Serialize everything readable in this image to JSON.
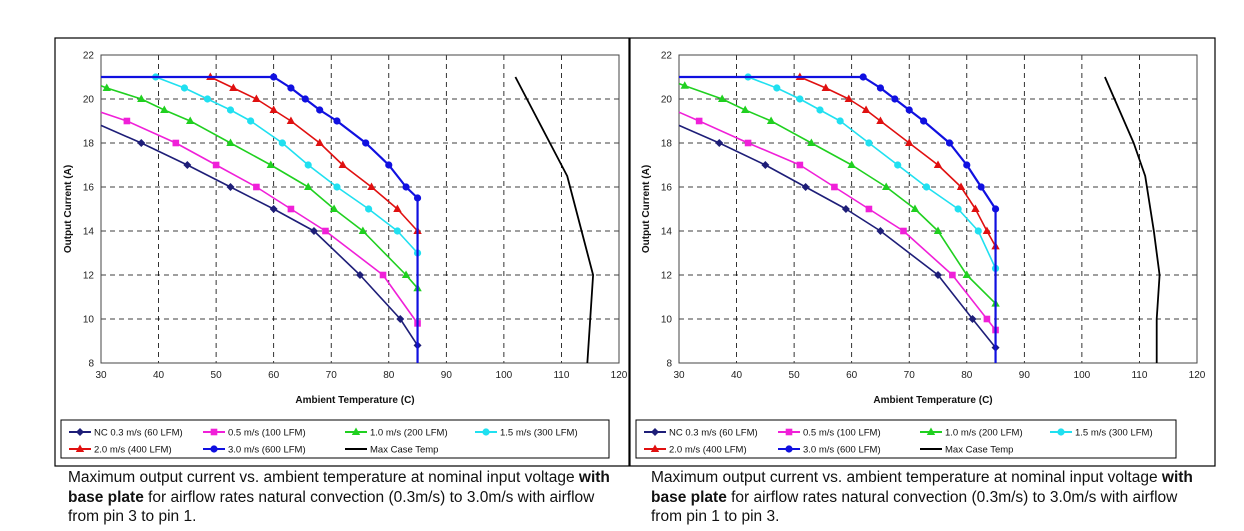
{
  "colors": {
    "nc": "#1e1e78",
    "s05": "#f020d8",
    "s10": "#20d020",
    "s15": "#20e0f0",
    "s20": "#e01010",
    "s30": "#1010e0",
    "max": "#000000"
  },
  "chart_data": [
    {
      "type": "line",
      "xlabel": "Ambient Temperature (C)",
      "ylabel": "Output Current (A)",
      "xlim": [
        30,
        120
      ],
      "ylim": [
        8,
        22
      ],
      "x_ticks": [
        "30",
        "40",
        "50",
        "60",
        "70",
        "80",
        "90",
        "100",
        "110",
        "120"
      ],
      "y_ticks": [
        "8",
        "10",
        "12",
        "14",
        "16",
        "18",
        "20",
        "22"
      ],
      "grid": "dashed",
      "legend_position": "bottom",
      "series": [
        {
          "name": "NC 0.3 m/s (60 LFM)",
          "color_key": "nc",
          "marker": "diamond",
          "points": [
            [
              30,
              18.8
            ],
            [
              37,
              18
            ],
            [
              45,
              17
            ],
            [
              52.5,
              16
            ],
            [
              60,
              15
            ],
            [
              67,
              14
            ],
            [
              75,
              12
            ],
            [
              82,
              10
            ],
            [
              85,
              8.8
            ],
            [
              85,
              8
            ]
          ]
        },
        {
          "name": "0.5 m/s (100 LFM)",
          "color_key": "s05",
          "marker": "square",
          "points": [
            [
              30,
              19.4
            ],
            [
              34.5,
              19
            ],
            [
              43,
              18
            ],
            [
              50,
              17
            ],
            [
              57,
              16
            ],
            [
              63,
              15
            ],
            [
              69,
              14
            ],
            [
              79,
              12
            ],
            [
              85,
              9.8
            ],
            [
              85,
              8
            ]
          ]
        },
        {
          "name": "1.0 m/s (200 LFM)",
          "color_key": "s10",
          "marker": "triangle",
          "points": [
            [
              30,
              20.6
            ],
            [
              31,
              20.5
            ],
            [
              37,
              20
            ],
            [
              41,
              19.5
            ],
            [
              45.5,
              19
            ],
            [
              52.5,
              18
            ],
            [
              59.5,
              17
            ],
            [
              66,
              16
            ],
            [
              70.5,
              15
            ],
            [
              75.5,
              14
            ],
            [
              83,
              12
            ],
            [
              85,
              11.4
            ],
            [
              85,
              8
            ]
          ]
        },
        {
          "name": "1.5 m/s (300 LFM)",
          "color_key": "s15",
          "marker": "circle",
          "points": [
            [
              30,
              21
            ],
            [
              39.5,
              21
            ],
            [
              44.5,
              20.5
            ],
            [
              48.5,
              20
            ],
            [
              52.5,
              19.5
            ],
            [
              56,
              19
            ],
            [
              61.5,
              18
            ],
            [
              66,
              17
            ],
            [
              71,
              16
            ],
            [
              76.5,
              15
            ],
            [
              81.5,
              14
            ],
            [
              85,
              13
            ],
            [
              85,
              8
            ]
          ]
        },
        {
          "name": "2.0 m/s (400 LFM)",
          "color_key": "s20",
          "marker": "triangle",
          "points": [
            [
              30,
              21
            ],
            [
              49,
              21
            ],
            [
              53,
              20.5
            ],
            [
              57,
              20
            ],
            [
              60,
              19.5
            ],
            [
              63,
              19
            ],
            [
              68,
              18
            ],
            [
              72,
              17
            ],
            [
              77,
              16
            ],
            [
              81.5,
              15
            ],
            [
              85,
              14
            ],
            [
              85,
              8
            ]
          ]
        },
        {
          "name": "3.0 m/s (600 LFM)",
          "color_key": "s30",
          "marker": "circle",
          "points": [
            [
              30,
              21
            ],
            [
              60,
              21
            ],
            [
              63,
              20.5
            ],
            [
              65.5,
              20
            ],
            [
              68,
              19.5
            ],
            [
              71,
              19
            ],
            [
              76,
              18
            ],
            [
              80,
              17
            ],
            [
              83,
              16
            ],
            [
              85,
              15.5
            ],
            [
              85,
              8
            ]
          ]
        },
        {
          "name": "Max Case Temp",
          "color_key": "max",
          "marker": "none",
          "points": [
            [
              102,
              21
            ],
            [
              105,
              19.5
            ],
            [
              108,
              18
            ],
            [
              111,
              16.5
            ],
            [
              113.5,
              14
            ],
            [
              115.5,
              12
            ],
            [
              115,
              10
            ],
            [
              114.5,
              8
            ]
          ]
        }
      ]
    },
    {
      "type": "line",
      "xlabel": "Ambient Temperature (C)",
      "ylabel": "Output Current (A)",
      "xlim": [
        30,
        120
      ],
      "ylim": [
        8,
        22
      ],
      "x_ticks": [
        "30",
        "40",
        "50",
        "60",
        "70",
        "80",
        "90",
        "100",
        "110",
        "120"
      ],
      "y_ticks": [
        "8",
        "10",
        "12",
        "14",
        "16",
        "18",
        "20",
        "22"
      ],
      "grid": "dashed",
      "legend_position": "bottom",
      "series": [
        {
          "name": "NC 0.3 m/s (60 LFM)",
          "color_key": "nc",
          "marker": "diamond",
          "points": [
            [
              30,
              18.8
            ],
            [
              37,
              18
            ],
            [
              45,
              17
            ],
            [
              52,
              16
            ],
            [
              59,
              15
            ],
            [
              65,
              14
            ],
            [
              75,
              12
            ],
            [
              81,
              10
            ],
            [
              85,
              8.7
            ],
            [
              85,
              8
            ]
          ]
        },
        {
          "name": "0.5 m/s (100 LFM)",
          "color_key": "s05",
          "marker": "square",
          "points": [
            [
              30,
              19.4
            ],
            [
              33.5,
              19
            ],
            [
              42,
              18
            ],
            [
              51,
              17
            ],
            [
              57,
              16
            ],
            [
              63,
              15
            ],
            [
              69,
              14
            ],
            [
              77.5,
              12
            ],
            [
              83.5,
              10
            ],
            [
              85,
              9.5
            ],
            [
              85,
              8
            ]
          ]
        },
        {
          "name": "1.0 m/s (200 LFM)",
          "color_key": "s10",
          "marker": "triangle",
          "points": [
            [
              30,
              20.7
            ],
            [
              31,
              20.6
            ],
            [
              37.5,
              20
            ],
            [
              41.5,
              19.5
            ],
            [
              46,
              19
            ],
            [
              53,
              18
            ],
            [
              60,
              17
            ],
            [
              66,
              16
            ],
            [
              71,
              15
            ],
            [
              75,
              14
            ],
            [
              80,
              12
            ],
            [
              85,
              10.7
            ],
            [
              85,
              8
            ]
          ]
        },
        {
          "name": "1.5 m/s (300 LFM)",
          "color_key": "s15",
          "marker": "circle",
          "points": [
            [
              30,
              21
            ],
            [
              42,
              21
            ],
            [
              47,
              20.5
            ],
            [
              51,
              20
            ],
            [
              54.5,
              19.5
            ],
            [
              58,
              19
            ],
            [
              63,
              18
            ],
            [
              68,
              17
            ],
            [
              73,
              16
            ],
            [
              78.5,
              15
            ],
            [
              82,
              14
            ],
            [
              85,
              12.3
            ],
            [
              85,
              8
            ]
          ]
        },
        {
          "name": "2.0 m/s (400 LFM)",
          "color_key": "s20",
          "marker": "triangle",
          "points": [
            [
              30,
              21
            ],
            [
              51,
              21
            ],
            [
              55.5,
              20.5
            ],
            [
              59.5,
              20
            ],
            [
              62.5,
              19.5
            ],
            [
              65,
              19
            ],
            [
              70,
              18
            ],
            [
              75,
              17
            ],
            [
              79,
              16
            ],
            [
              81.5,
              15
            ],
            [
              83.5,
              14
            ],
            [
              85,
              13.3
            ],
            [
              85,
              8
            ]
          ]
        },
        {
          "name": "3.0 m/s (600 LFM)",
          "color_key": "s30",
          "marker": "circle",
          "points": [
            [
              30,
              21
            ],
            [
              62,
              21
            ],
            [
              65,
              20.5
            ],
            [
              67.5,
              20
            ],
            [
              70,
              19.5
            ],
            [
              72.5,
              19
            ],
            [
              77,
              18
            ],
            [
              80,
              17
            ],
            [
              82.5,
              16
            ],
            [
              85,
              15
            ],
            [
              85,
              8
            ]
          ]
        },
        {
          "name": "Max Case Temp",
          "color_key": "max",
          "marker": "none",
          "points": [
            [
              104,
              21
            ],
            [
              106.5,
              19.5
            ],
            [
              109,
              18
            ],
            [
              111,
              16.5
            ],
            [
              112.5,
              14
            ],
            [
              113.5,
              12
            ],
            [
              113,
              10
            ],
            [
              113,
              8
            ]
          ]
        }
      ]
    }
  ],
  "captions": [
    {
      "before": "Maximum output current vs. ambient temperature at nominal input voltage ",
      "bold": "with base plate",
      "after": " for airflow rates natural convection (0.3m/s) to 3.0m/s with airflow from pin 3 to pin 1."
    },
    {
      "before": "Maximum output current vs. ambient temperature at nominal input voltage ",
      "bold": "with base plate",
      "after": " for airflow rates natural convection (0.3m/s) to 3.0m/s with airflow from pin 1 to pin 3."
    }
  ]
}
